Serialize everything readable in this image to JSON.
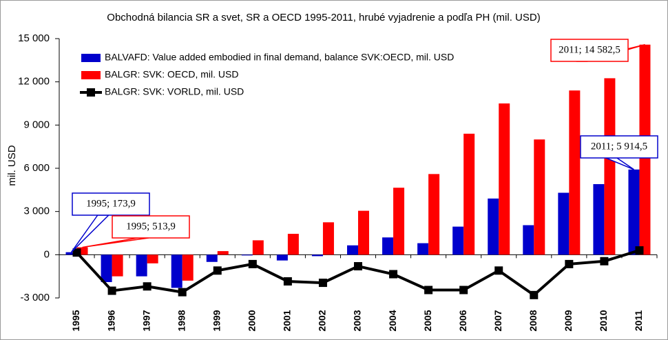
{
  "chart_data": {
    "type": "bar",
    "title": "Obchodná bilancia SR a svet, SR a OECD 1995-2011, hrubé vyjadrenie a podľa PH (mil. USD)",
    "y_axis_label": "mil. USD",
    "categories": [
      "1995",
      "1996",
      "1997",
      "1998",
      "1999",
      "2000",
      "2001",
      "2002",
      "2003",
      "2004",
      "2005",
      "2006",
      "2007",
      "2008",
      "2009",
      "2010",
      "2011"
    ],
    "series": [
      {
        "name": "BALVAFD: Value added embodied in final demand, balance SVK:OECD, mil. USD",
        "type": "bar",
        "color": "#0000cc",
        "values": [
          173.9,
          -1900,
          -1500,
          -2300,
          -500,
          -50,
          -400,
          -100,
          650,
          1200,
          800,
          1950,
          3900,
          2050,
          4300,
          4900,
          5914.5
        ],
        "value_labels": [
          "1995; 173,9",
          null,
          null,
          null,
          null,
          null,
          null,
          null,
          null,
          null,
          null,
          null,
          null,
          null,
          null,
          null,
          "2011; 5 914,5"
        ]
      },
      {
        "name": "BALGR: SVK: OECD, mil. USD",
        "type": "bar",
        "color": "#ff0000",
        "values": [
          513.9,
          -1500,
          -600,
          -1800,
          250,
          1000,
          1450,
          2250,
          3050,
          4650,
          5600,
          8400,
          10500,
          8000,
          11400,
          12250,
          14582.5
        ],
        "value_labels": [
          "1995; 513,9",
          null,
          null,
          null,
          null,
          null,
          null,
          null,
          null,
          null,
          null,
          null,
          null,
          null,
          null,
          null,
          "2011; 14 582,5"
        ]
      },
      {
        "name": "BALGR: SVK: VORLD, mil. USD",
        "type": "line",
        "color": "#000000",
        "values": [
          150,
          -2500,
          -2200,
          -2600,
          -1100,
          -650,
          -1850,
          -1950,
          -800,
          -1350,
          -2450,
          -2450,
          -1100,
          -2800,
          -650,
          -450,
          300
        ]
      }
    ],
    "ylim": [
      -3000,
      15000
    ],
    "yticks": [
      {
        "value": -3000,
        "label": "-3 000"
      },
      0,
      {
        "value": 3000,
        "label": "3 000"
      },
      {
        "value": 6000,
        "label": "6 000"
      },
      {
        "value": 9000,
        "label": "9 000"
      },
      {
        "value": 12000,
        "label": "12 000"
      },
      {
        "value": 15000,
        "label": "15 000"
      }
    ],
    "grid": false
  }
}
